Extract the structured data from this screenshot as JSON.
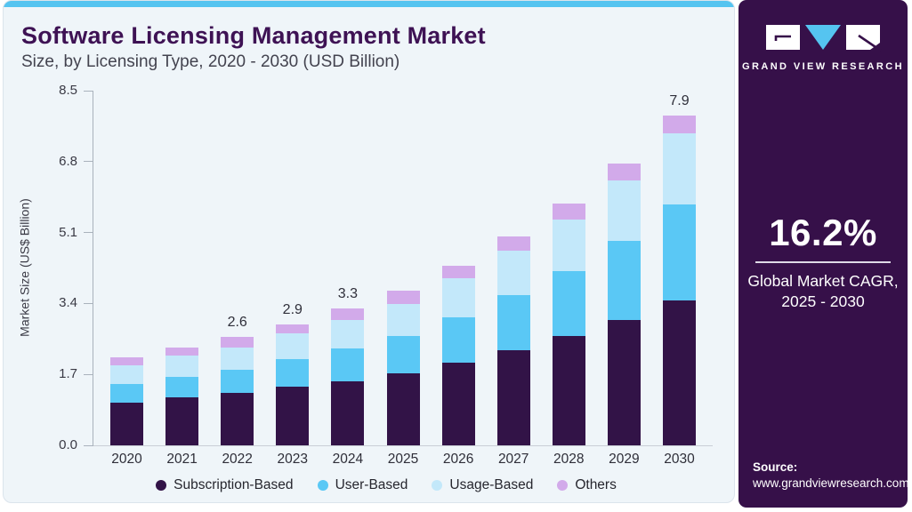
{
  "header": {
    "title": "Software Licensing Management Market",
    "subtitle": "Size, by Licensing Type, 2020 - 2030 (USD Billion)"
  },
  "sidebar": {
    "logo_text": "GRAND VIEW RESEARCH",
    "cagr_value": "16.2%",
    "cagr_label_line1": "Global Market CAGR,",
    "cagr_label_line2": "2025 - 2030",
    "source_label": "Source:",
    "source_url": "www.grandviewresearch.com"
  },
  "colors": {
    "accent_strip": "#55c4f0",
    "card_bg": "#eff5f9",
    "sidebar_bg": "#361049",
    "title": "#3e1254",
    "axis": "#a9b2bc"
  },
  "chart_data": {
    "type": "bar",
    "stacked": true,
    "title": "Software Licensing Management Market Size, by Licensing Type, 2020 - 2030 (USD Billion)",
    "xlabel": "",
    "ylabel": "Market Size (US$ Billion)",
    "ylim": [
      0,
      8.5
    ],
    "yticks": [
      "0.0",
      "1.7",
      "3.4",
      "5.1",
      "6.8",
      "8.5"
    ],
    "grid": false,
    "legend_position": "bottom",
    "categories": [
      "2020",
      "2021",
      "2022",
      "2023",
      "2024",
      "2025",
      "2026",
      "2027",
      "2028",
      "2029",
      "2030"
    ],
    "series": [
      {
        "name": "Subscription-Based",
        "color": "#321347",
        "values": [
          1.03,
          1.15,
          1.25,
          1.4,
          1.54,
          1.72,
          1.98,
          2.28,
          2.61,
          3.01,
          3.47
        ]
      },
      {
        "name": "User-Based",
        "color": "#5ac8f5",
        "values": [
          0.43,
          0.49,
          0.57,
          0.67,
          0.79,
          0.9,
          1.09,
          1.32,
          1.57,
          1.89,
          2.3
        ]
      },
      {
        "name": "Usage-Based",
        "color": "#c3e8fa",
        "values": [
          0.45,
          0.51,
          0.53,
          0.62,
          0.67,
          0.77,
          0.93,
          1.06,
          1.24,
          1.44,
          1.71
        ]
      },
      {
        "name": "Others",
        "color": "#d2aaea",
        "values": [
          0.2,
          0.19,
          0.25,
          0.21,
          0.29,
          0.31,
          0.3,
          0.34,
          0.37,
          0.41,
          0.42
        ]
      }
    ],
    "totals": [
      2.1,
      2.3,
      2.6,
      2.9,
      3.3,
      3.7,
      4.3,
      5.0,
      5.8,
      6.8,
      7.9
    ],
    "bar_labels": [
      "",
      "",
      "2.6",
      "2.9",
      "3.3",
      "",
      "",
      "",
      "",
      "",
      "7.9"
    ]
  }
}
